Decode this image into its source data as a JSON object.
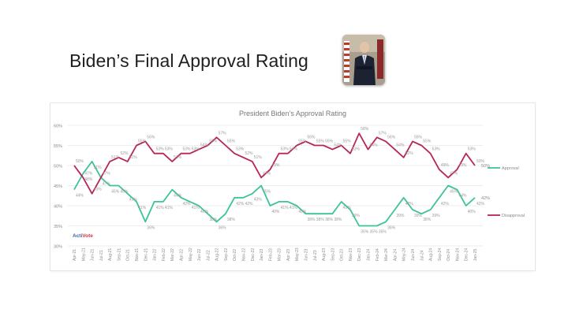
{
  "slide": {
    "title": "Biden’s Final Approval Rating",
    "photo_alt": "portrait-photo"
  },
  "chart_data": {
    "type": "line",
    "title": "President Biden’s Approval Rating",
    "xlabel": "",
    "ylabel": "",
    "ylim": [
      0.3,
      0.6
    ],
    "yticks": [
      "30%",
      "35%",
      "40%",
      "45%",
      "50%",
      "55%",
      "60%"
    ],
    "grid": true,
    "legend_position": "right",
    "watermark": "ActiVote",
    "categories": [
      "Apr-21",
      "May-21",
      "Jun-21",
      "Jul-21",
      "Aug-21",
      "Sep-21",
      "Oct-21",
      "Nov-21",
      "Dec-21",
      "Jan-22",
      "Feb-22",
      "Mar-22",
      "Apr-22",
      "May-22",
      "Jun-22",
      "Jul-22",
      "Aug-22",
      "Sep-22",
      "Oct-22",
      "Nov-22",
      "Dec-22",
      "Jan-23",
      "Feb-23",
      "Mar-23",
      "Apr-23",
      "May-23",
      "Jun-23",
      "Jul-23",
      "Aug-23",
      "Sep-23",
      "Oct-23",
      "Nov-23",
      "Dec-23",
      "Jan-24",
      "Feb-24",
      "Mar-24",
      "Apr-24",
      "May-24",
      "Jun-24",
      "Jul-24",
      "Aug-24",
      "Sep-24",
      "Oct-24",
      "Nov-24",
      "Dec-24",
      "Jan-25"
    ],
    "series": [
      {
        "name": "Approval",
        "color": "#3cc39a",
        "values": [
          44,
          48,
          51,
          47,
          45,
          45,
          43,
          41,
          36,
          41,
          41,
          44,
          42,
          41,
          40,
          38,
          36,
          38,
          42,
          42,
          43,
          45,
          40,
          41,
          41,
          40,
          38,
          38,
          38,
          38,
          41,
          39,
          35,
          35,
          35,
          36,
          39,
          42,
          39,
          38,
          39,
          42,
          45,
          44,
          40,
          42
        ]
      },
      {
        "name": "Disapproval",
        "color": "#b8245c",
        "values": [
          50,
          47,
          43,
          47,
          51,
          52,
          51,
          55,
          56,
          53,
          53,
          51,
          53,
          53,
          54,
          55,
          57,
          55,
          53,
          52,
          51,
          47,
          49,
          53,
          53,
          55,
          56,
          55,
          55,
          54,
          55,
          53,
          58,
          54,
          57,
          56,
          54,
          52,
          56,
          55,
          53,
          49,
          47,
          49,
          53,
          50
        ]
      }
    ],
    "end_labels": {
      "Approval": "42%",
      "Disapproval": "50%"
    }
  }
}
